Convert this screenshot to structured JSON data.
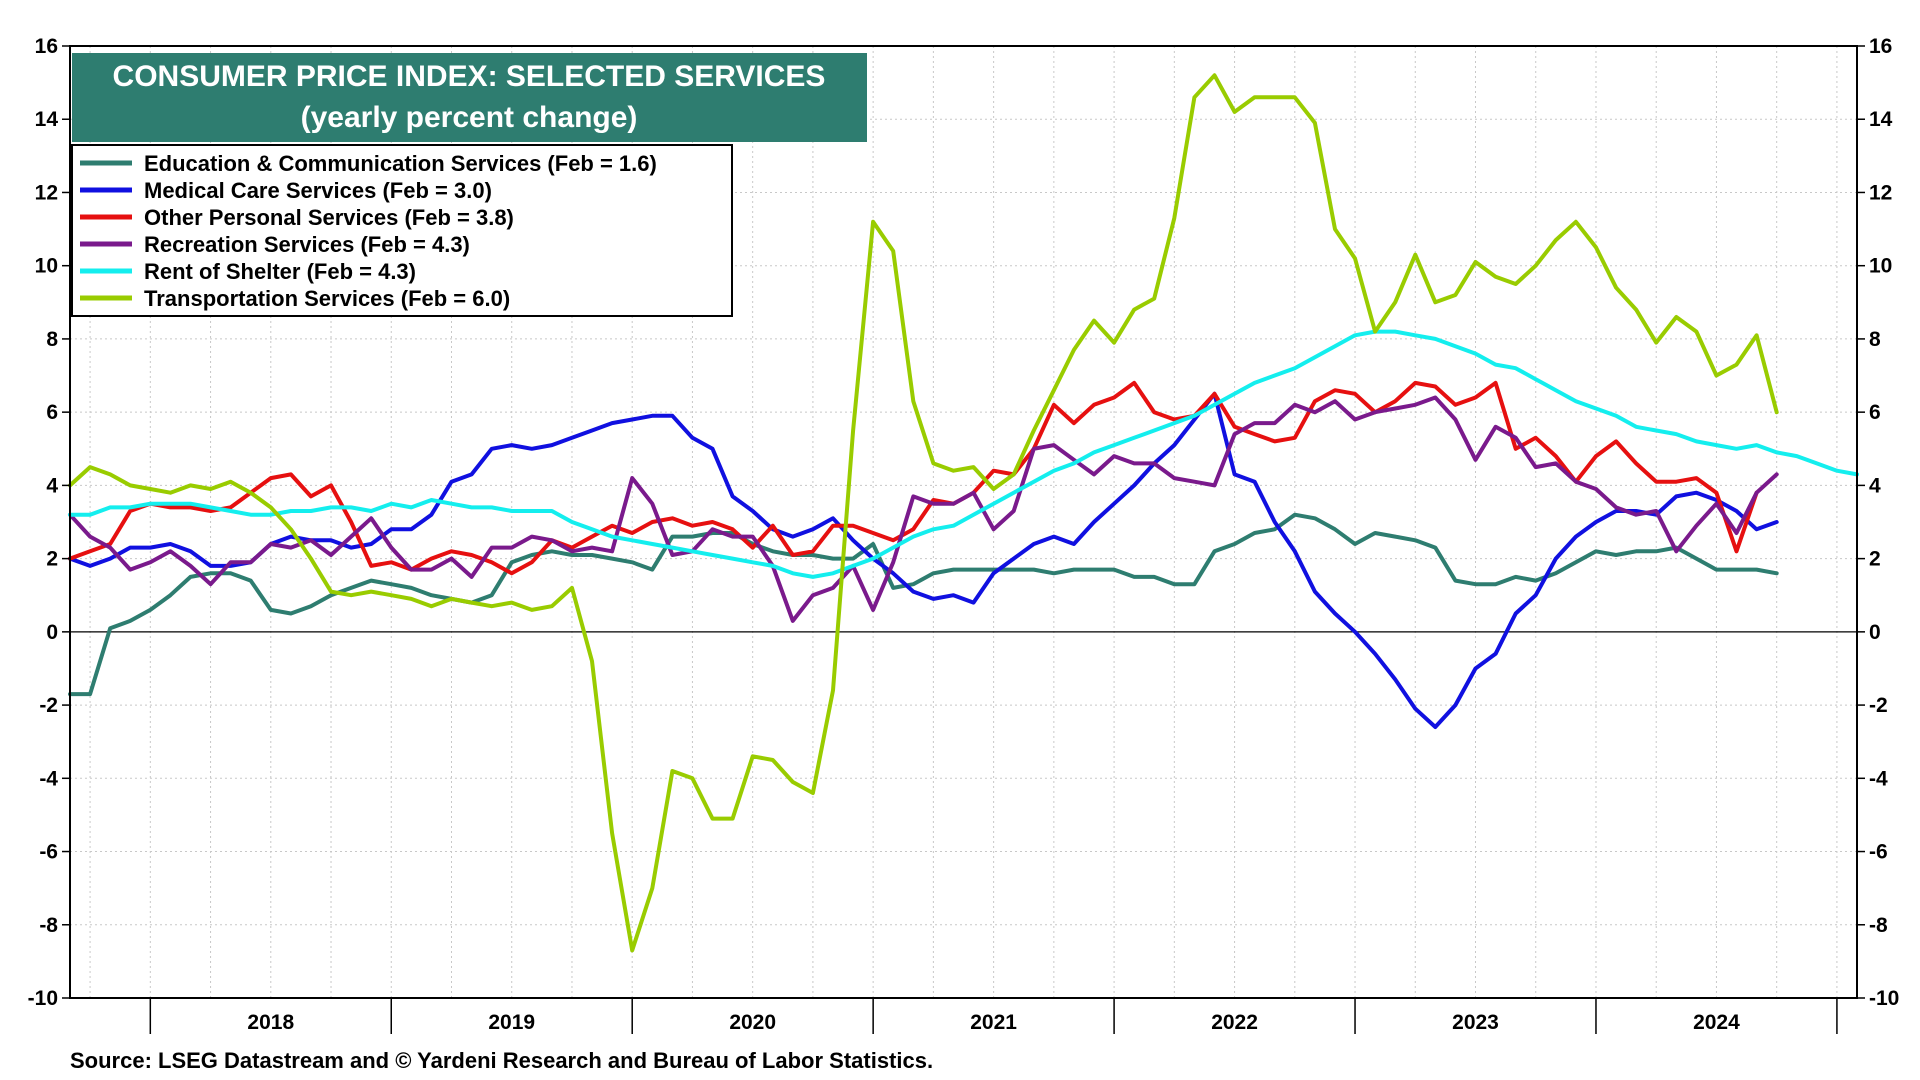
{
  "chart_data": {
    "type": "line",
    "title": "CONSUMER PRICE INDEX: SELECTED SERVICES",
    "subtitle": "(yearly percent change)",
    "source": "Source: LSEG Datastream and © Yardeni Research and Bureau of Labor Statistics.",
    "ylim": [
      -10,
      16
    ],
    "yticks": [
      -10,
      -8,
      -6,
      -4,
      -2,
      0,
      2,
      4,
      6,
      8,
      10,
      12,
      14,
      16
    ],
    "x_start": "2017-09",
    "x_end": "2025-02",
    "year_labels": [
      "2018",
      "2019",
      "2020",
      "2021",
      "2022",
      "2023",
      "2024"
    ],
    "grid": true,
    "legend_position": "top-left",
    "series": [
      {
        "name": "Education & Communication Services (Feb = 1.6)",
        "color": "#2e7d70",
        "start": "2017-09",
        "values": [
          -1.7,
          -1.7,
          0.1,
          0.3,
          0.6,
          1.0,
          1.5,
          1.6,
          1.6,
          1.4,
          0.6,
          0.5,
          0.7,
          1.0,
          1.2,
          1.4,
          1.3,
          1.2,
          1.0,
          0.9,
          0.8,
          1.0,
          1.9,
          2.1,
          2.2,
          2.1,
          2.1,
          2.0,
          1.9,
          1.7,
          2.6,
          2.6,
          2.7,
          2.7,
          2.4,
          2.2,
          2.1,
          2.1,
          2.0,
          2.0,
          2.4,
          1.2,
          1.3,
          1.6,
          1.7,
          1.7,
          1.7,
          1.7,
          1.7,
          1.6,
          1.7,
          1.7,
          1.7,
          1.5,
          1.5,
          1.3,
          1.3,
          2.2,
          2.4,
          2.7,
          2.8,
          3.2,
          3.1,
          2.8,
          2.4,
          2.7,
          2.6,
          2.5,
          2.3,
          1.4,
          1.3,
          1.3,
          1.5,
          1.4,
          1.6,
          1.9,
          2.2,
          2.1,
          2.2,
          2.2,
          2.3,
          2.0,
          1.7,
          1.7,
          1.7,
          1.6
        ]
      },
      {
        "name": "Medical Care Services (Feb = 3.0)",
        "color": "#1010e0",
        "start": "2017-09",
        "values": [
          2.0,
          1.8,
          2.0,
          2.3,
          2.3,
          2.4,
          2.2,
          1.8,
          1.8,
          1.9,
          2.4,
          2.6,
          2.5,
          2.5,
          2.3,
          2.4,
          2.8,
          2.8,
          3.2,
          4.1,
          4.3,
          5.0,
          5.1,
          5.0,
          5.1,
          5.3,
          5.5,
          5.7,
          5.8,
          5.9,
          5.9,
          5.3,
          5.0,
          3.7,
          3.3,
          2.8,
          2.6,
          2.8,
          3.1,
          2.5,
          2.0,
          1.6,
          1.1,
          0.9,
          1.0,
          0.8,
          1.6,
          2.0,
          2.4,
          2.6,
          2.4,
          3.0,
          3.5,
          4.0,
          4.6,
          5.1,
          5.8,
          6.5,
          4.3,
          4.1,
          3.0,
          2.2,
          1.1,
          0.5,
          0.0,
          -0.6,
          -1.3,
          -2.1,
          -2.6,
          -2.0,
          -1.0,
          -0.6,
          0.5,
          1.0,
          2.0,
          2.6,
          3.0,
          3.3,
          3.3,
          3.2,
          3.7,
          3.8,
          3.6,
          3.3,
          2.8,
          3.0
        ]
      },
      {
        "name": "Other Personal Services (Feb = 3.8)",
        "color": "#e61010",
        "start": "2017-09",
        "values": [
          2.0,
          2.2,
          2.4,
          3.3,
          3.5,
          3.4,
          3.4,
          3.3,
          3.4,
          3.8,
          4.2,
          4.3,
          3.7,
          4.0,
          3.0,
          1.8,
          1.9,
          1.7,
          2.0,
          2.2,
          2.1,
          1.9,
          1.6,
          1.9,
          2.5,
          2.3,
          2.6,
          2.9,
          2.7,
          3.0,
          3.1,
          2.9,
          3.0,
          2.8,
          2.3,
          2.9,
          2.1,
          2.2,
          2.9,
          2.9,
          2.7,
          2.5,
          2.8,
          3.6,
          3.5,
          3.8,
          4.4,
          4.3,
          5.0,
          6.2,
          5.7,
          6.2,
          6.4,
          6.8,
          6.0,
          5.8,
          5.9,
          6.5,
          5.6,
          5.4,
          5.2,
          5.3,
          6.3,
          6.6,
          6.5,
          6.0,
          6.3,
          6.8,
          6.7,
          6.2,
          6.4,
          6.8,
          5.0,
          5.3,
          4.8,
          4.1,
          4.8,
          5.2,
          4.6,
          4.1,
          4.1,
          4.2,
          3.8,
          2.2,
          3.8
        ]
      },
      {
        "name": "Recreation Services (Feb = 4.3)",
        "color": "#7a1a8c",
        "start": "2017-09",
        "values": [
          3.2,
          2.6,
          2.3,
          1.7,
          1.9,
          2.2,
          1.8,
          1.3,
          1.9,
          1.9,
          2.4,
          2.3,
          2.5,
          2.1,
          2.6,
          3.1,
          2.3,
          1.7,
          1.7,
          2.0,
          1.5,
          2.3,
          2.3,
          2.6,
          2.5,
          2.2,
          2.3,
          2.2,
          4.2,
          3.5,
          2.1,
          2.2,
          2.8,
          2.6,
          2.6,
          1.8,
          0.3,
          1.0,
          1.2,
          1.8,
          0.6,
          1.9,
          3.7,
          3.5,
          3.5,
          3.8,
          2.8,
          3.3,
          5.0,
          5.1,
          4.7,
          4.3,
          4.8,
          4.6,
          4.6,
          4.2,
          4.1,
          4.0,
          5.4,
          5.7,
          5.7,
          6.2,
          6.0,
          6.3,
          5.8,
          6.0,
          6.1,
          6.2,
          6.4,
          5.8,
          4.7,
          5.6,
          5.3,
          4.5,
          4.6,
          4.1,
          3.9,
          3.4,
          3.2,
          3.3,
          2.2,
          2.9,
          3.5,
          2.7,
          3.8,
          4.3
        ]
      },
      {
        "name": "Rent of Shelter (Feb = 4.3)",
        "color": "#14eeee",
        "start": "2017-09",
        "values": [
          3.2,
          3.2,
          3.4,
          3.4,
          3.5,
          3.5,
          3.5,
          3.4,
          3.3,
          3.2,
          3.2,
          3.3,
          3.3,
          3.4,
          3.4,
          3.3,
          3.5,
          3.4,
          3.6,
          3.5,
          3.4,
          3.4,
          3.3,
          3.3,
          3.3,
          3.0,
          2.8,
          2.6,
          2.5,
          2.4,
          2.3,
          2.2,
          2.1,
          2.0,
          1.9,
          1.8,
          1.6,
          1.5,
          1.6,
          1.8,
          2.0,
          2.3,
          2.6,
          2.8,
          2.9,
          3.2,
          3.5,
          3.8,
          4.1,
          4.4,
          4.6,
          4.9,
          5.1,
          5.3,
          5.5,
          5.7,
          5.9,
          6.2,
          6.5,
          6.8,
          7.0,
          7.2,
          7.5,
          7.8,
          8.1,
          8.2,
          8.2,
          8.1,
          8.0,
          7.8,
          7.6,
          7.3,
          7.2,
          6.9,
          6.6,
          6.3,
          6.1,
          5.9,
          5.6,
          5.5,
          5.4,
          5.2,
          5.1,
          5.0,
          5.1,
          4.9,
          4.8,
          4.6,
          4.4,
          4.3
        ]
      },
      {
        "name": "Transportation Services (Feb = 6.0)",
        "color": "#99cc00",
        "start": "2017-09",
        "values": [
          4.0,
          4.5,
          4.3,
          4.0,
          3.9,
          3.8,
          4.0,
          3.9,
          4.1,
          3.8,
          3.4,
          2.8,
          2.0,
          1.1,
          1.0,
          1.1,
          1.0,
          0.9,
          0.7,
          0.9,
          0.8,
          0.7,
          0.8,
          0.6,
          0.7,
          1.2,
          -0.8,
          -5.5,
          -8.7,
          -7.0,
          -3.8,
          -4.0,
          -5.1,
          -5.1,
          -3.4,
          -3.5,
          -4.1,
          -4.4,
          -1.6,
          5.5,
          11.2,
          10.4,
          6.3,
          4.6,
          4.4,
          4.5,
          3.9,
          4.3,
          5.5,
          6.6,
          7.7,
          8.5,
          7.9,
          8.8,
          9.1,
          11.3,
          14.6,
          15.2,
          14.2,
          14.6,
          14.6,
          14.6,
          13.9,
          11.0,
          10.2,
          8.2,
          9.0,
          10.3,
          9.0,
          9.2,
          10.1,
          9.7,
          9.5,
          10.0,
          10.7,
          11.2,
          10.5,
          9.4,
          8.8,
          7.9,
          8.6,
          8.2,
          7.0,
          7.3,
          8.1,
          6.0
        ]
      }
    ]
  }
}
